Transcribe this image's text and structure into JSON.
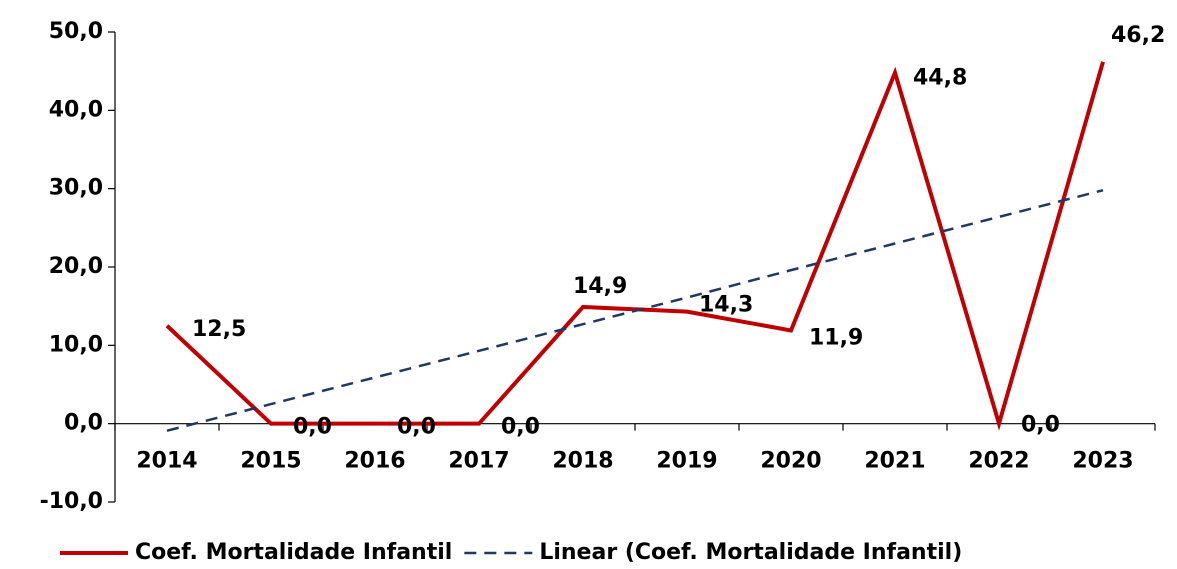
{
  "chart_data": {
    "type": "line",
    "categories": [
      "2014",
      "2015",
      "2016",
      "2017",
      "2018",
      "2019",
      "2020",
      "2021",
      "2022",
      "2023"
    ],
    "series": [
      {
        "name": "Coef. Mortalidade Infantil",
        "color": "#c00000",
        "values": [
          12.5,
          0,
          0,
          0,
          14.9,
          14.3,
          11.9,
          44.8,
          0,
          46.2
        ],
        "value_labels": [
          "12,5",
          "0,0",
          "0,0",
          "0,0",
          "14,9",
          "14,3",
          "11,9",
          "44,8",
          "0,0",
          "46,2"
        ]
      },
      {
        "name": "Linear (Coef. Mortalidade Infantil)",
        "color": "#1f3864",
        "dashed": true,
        "values": [
          -0.9,
          2.5,
          5.9,
          9.3,
          12.7,
          16.1,
          19.6,
          23.0,
          26.4,
          29.8
        ]
      }
    ],
    "ylim": [
      -10,
      50
    ],
    "yticks": [
      {
        "value": -10,
        "label": "-10,0"
      },
      {
        "value": 0,
        "label": "0,0"
      },
      {
        "value": 10,
        "label": "10,0"
      },
      {
        "value": 20,
        "label": "20,0"
      },
      {
        "value": 30,
        "label": "30,0"
      },
      {
        "value": 40,
        "label": "40,0"
      },
      {
        "value": 50,
        "label": "50,0"
      }
    ],
    "legend": "bottom"
  }
}
